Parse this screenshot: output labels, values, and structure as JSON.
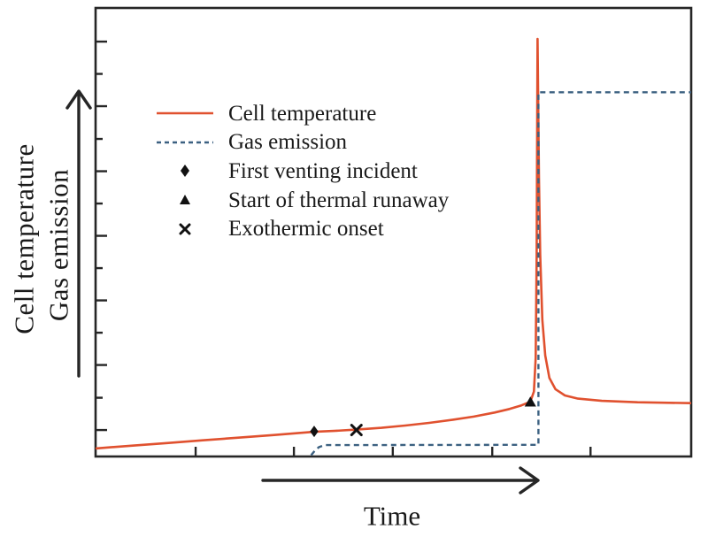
{
  "figure": {
    "background": "#ffffff",
    "border_color": "#262626",
    "axis_color": "#262626",
    "marker_color": "#111111"
  },
  "y_axis": {
    "label_outer": "Cell temperature",
    "label_inner": "Gas emission",
    "direction_arrow": "up-arrow"
  },
  "x_axis": {
    "label": "Time",
    "direction_arrow": "right-arrow"
  },
  "legend": {
    "items": [
      {
        "symbol": "line-solid",
        "color": "#e0512f",
        "label": "Cell temperature"
      },
      {
        "symbol": "line-dashed",
        "color": "#3c6181",
        "label": "Gas emission"
      },
      {
        "symbol": "diamond",
        "color": "#111111",
        "label": "First venting incident"
      },
      {
        "symbol": "triangle",
        "color": "#111111",
        "label": "Start of thermal runaway"
      },
      {
        "symbol": "x",
        "color": "#111111",
        "label": "Exothermic onset"
      }
    ]
  },
  "chart_data": {
    "type": "line",
    "title": "",
    "xlabel": "Time",
    "ylabel": "Cell temperature / Gas emission",
    "axes_numeric": false,
    "x_range": [
      0,
      100
    ],
    "y_range": [
      0,
      100
    ],
    "grid": false,
    "legend_position": "upper-left-inside",
    "x_ticks": [
      16.8,
      33.3,
      49.9,
      66.6,
      83.1
    ],
    "y_ticks": [
      {
        "pos": 92.5,
        "major": true
      },
      {
        "pos": 85.3,
        "major": false
      },
      {
        "pos": 78.1,
        "major": true
      },
      {
        "pos": 70.8,
        "major": false
      },
      {
        "pos": 63.6,
        "major": true
      },
      {
        "pos": 56.4,
        "major": false
      },
      {
        "pos": 49.2,
        "major": true
      },
      {
        "pos": 42.0,
        "major": false
      },
      {
        "pos": 34.8,
        "major": true
      },
      {
        "pos": 27.6,
        "major": false
      },
      {
        "pos": 20.4,
        "major": true
      },
      {
        "pos": 13.1,
        "major": false
      },
      {
        "pos": 5.9,
        "major": true
      }
    ],
    "series": [
      {
        "name": "Cell temperature",
        "style": "solid",
        "color": "#e0512f",
        "width": 2.6,
        "points": [
          [
            0,
            1.8
          ],
          [
            6,
            2.4
          ],
          [
            12,
            3.0
          ],
          [
            18,
            3.6
          ],
          [
            24,
            4.2
          ],
          [
            30,
            4.8
          ],
          [
            36.7,
            5.5
          ],
          [
            40,
            5.7
          ],
          [
            43.8,
            6.0
          ],
          [
            48,
            6.4
          ],
          [
            52,
            6.9
          ],
          [
            56,
            7.5
          ],
          [
            60,
            8.2
          ],
          [
            63.5,
            8.9
          ],
          [
            67,
            9.8
          ],
          [
            69.5,
            10.6
          ],
          [
            71.5,
            11.4
          ],
          [
            73.0,
            12.2
          ],
          [
            73.6,
            14.5
          ],
          [
            73.9,
            22
          ],
          [
            74.05,
            45
          ],
          [
            74.2,
            93.1
          ],
          [
            74.45,
            62
          ],
          [
            74.65,
            45
          ],
          [
            75.0,
            30.5
          ],
          [
            75.5,
            22.5
          ],
          [
            76.2,
            17.5
          ],
          [
            77.2,
            15.0
          ],
          [
            78.8,
            13.6
          ],
          [
            81,
            12.9
          ],
          [
            85,
            12.4
          ],
          [
            91,
            12.1
          ],
          [
            100,
            11.9
          ]
        ]
      },
      {
        "name": "Gas emission",
        "style": "dashed",
        "color": "#3c6181",
        "width": 2.4,
        "points": [
          [
            36.2,
            0.3
          ],
          [
            36.8,
            1.3
          ],
          [
            37.5,
            2.1
          ],
          [
            38.5,
            2.55
          ],
          [
            74.35,
            2.6
          ],
          [
            74.35,
            81.2
          ],
          [
            100,
            81.2
          ]
        ]
      }
    ],
    "markers": [
      {
        "name": "First venting incident",
        "shape": "diamond",
        "x": 36.7,
        "y": 5.6,
        "size": 13
      },
      {
        "name": "Exothermic onset",
        "shape": "x",
        "x": 43.8,
        "y": 5.9,
        "size": 13
      },
      {
        "name": "Start of thermal runaway",
        "shape": "triangle",
        "x": 73.0,
        "y": 12.1,
        "size": 13
      }
    ]
  }
}
